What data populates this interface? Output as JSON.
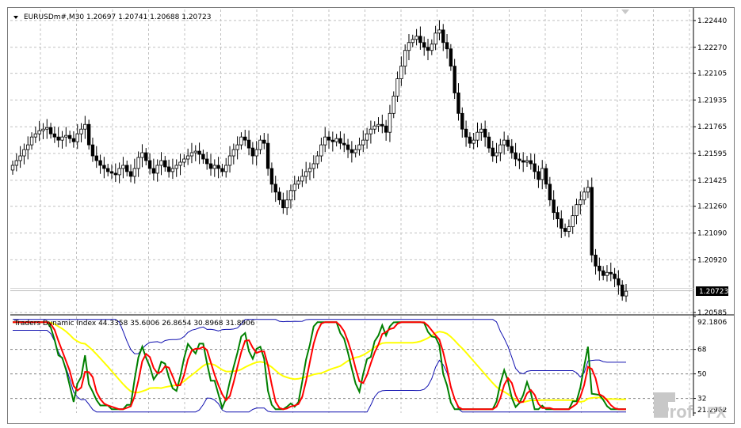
{
  "main_chart": {
    "header": "EURUSDm#,M30  1.20697 1.20741 1.20688 1.20723",
    "current_price": "1.20723",
    "price_min": 1.2058,
    "price_max": 1.2251,
    "price_ticks": [
      "1.22440",
      "1.22270",
      "1.22105",
      "1.21935",
      "1.21765",
      "1.21595",
      "1.21425",
      "1.21260",
      "1.21090",
      "1.20920",
      "1.20585"
    ],
    "candle_closes": [
      1.2152,
      1.2155,
      1.2158,
      1.2162,
      1.2165,
      1.217,
      1.2172,
      1.2174,
      1.2175,
      1.2176,
      1.2172,
      1.217,
      1.2168,
      1.217,
      1.2171,
      1.2169,
      1.2167,
      1.2172,
      1.2175,
      1.2178,
      1.2165,
      1.2158,
      1.2155,
      1.2152,
      1.215,
      1.2148,
      1.2147,
      1.2146,
      1.215,
      1.2152,
      1.2148,
      1.2145,
      1.215,
      1.2157,
      1.216,
      1.2155,
      1.215,
      1.2147,
      1.2152,
      1.2155,
      1.2151,
      1.2148,
      1.215,
      1.2152,
      1.2154,
      1.2156,
      1.2158,
      1.216,
      1.2161,
      1.2159,
      1.2156,
      1.2153,
      1.215,
      1.2152,
      1.215,
      1.2148,
      1.2152,
      1.2158,
      1.2162,
      1.2165,
      1.217,
      1.2168,
      1.2163,
      1.2158,
      1.2162,
      1.2168,
      1.2166,
      1.215,
      1.214,
      1.2135,
      1.213,
      1.2125,
      1.213,
      1.2136,
      1.214,
      1.2142,
      1.2145,
      1.2148,
      1.215,
      1.2153,
      1.2158,
      1.2165,
      1.217,
      1.2168,
      1.2167,
      1.2169,
      1.2166,
      1.2165,
      1.2162,
      1.216,
      1.2162,
      1.2165,
      1.2168,
      1.2172,
      1.2175,
      1.2177,
      1.2178,
      1.2177,
      1.2173,
      1.2185,
      1.2196,
      1.2207,
      1.2215,
      1.2225,
      1.223,
      1.2232,
      1.2234,
      1.223,
      1.2227,
      1.2225,
      1.2229,
      1.2236,
      1.2238,
      1.223,
      1.2226,
      1.2215,
      1.2198,
      1.2185,
      1.2175,
      1.217,
      1.2166,
      1.2168,
      1.2173,
      1.2175,
      1.217,
      1.2163,
      1.2158,
      1.216,
      1.2165,
      1.2168,
      1.2164,
      1.216,
      1.2156,
      1.2155,
      1.2154,
      1.2155,
      1.2153,
      1.2148,
      1.2143,
      1.215,
      1.214,
      1.213,
      1.2122,
      1.2118,
      1.2112,
      1.211,
      1.2113,
      1.212,
      1.2127,
      1.213,
      1.2135,
      1.2138,
      1.2095,
      1.2088,
      1.2085,
      1.2082,
      1.2084,
      1.2083,
      1.208,
      1.2076,
      1.2069,
      1.2072
    ]
  },
  "indicator": {
    "header": "Traders Dynamic Index 44.3358 35.6006 26.8654 30.8968 31.8906",
    "levels": [
      "92.1806",
      "68",
      "50",
      "32",
      "21.2962"
    ],
    "value_min": 21.2962,
    "value_max": 92.1806,
    "level_values": [
      68,
      50,
      32
    ]
  },
  "watermark": {
    "prefix": "Prof",
    "suffix": "FX"
  },
  "colors": {
    "grid": "#c0c0c0",
    "candle": "#000000",
    "band": "#1010b0",
    "signal": "#ff0000",
    "rsi": "#008000",
    "middle": "#ffff00",
    "price_line": "#bdbdbd",
    "watermark": "#c8c8c8"
  }
}
